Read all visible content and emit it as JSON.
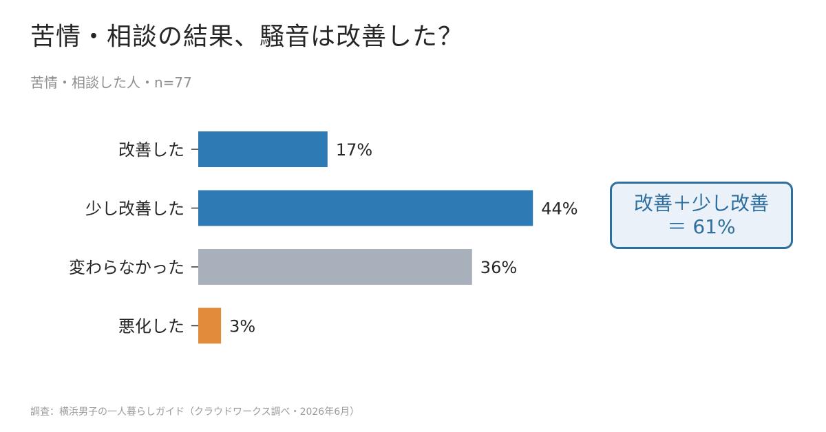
{
  "title": "苦情・相談の結果、騒音は改善した？",
  "subtitle": "苦情・相談した人・n=77",
  "source": "調査：横浜男子の一人暮らしガイド（クラウドワークス調べ・2026年6月）",
  "callout": {
    "line1": "改善＋少し改善",
    "line2": "＝ 61%"
  },
  "colors": {
    "improved": "#2e7ab4",
    "neutral": "#a8b0bb",
    "worse": "#e08c3a",
    "callout_border": "#2f6f9e",
    "callout_bg": "#eaf1f8"
  },
  "chart_data": {
    "type": "bar",
    "orientation": "horizontal",
    "categories": [
      "改善した",
      "少し改善した",
      "変わらなかった",
      "悪化した"
    ],
    "values": [
      17,
      44,
      36,
      3
    ],
    "value_labels": [
      "17%",
      "44%",
      "36%",
      "3%"
    ],
    "bar_colors": [
      "#2e7ab4",
      "#2e7ab4",
      "#a8b0bb",
      "#e08c3a"
    ],
    "unit": "%",
    "xlim": [
      0,
      50
    ],
    "grid": false,
    "legend": "none"
  }
}
